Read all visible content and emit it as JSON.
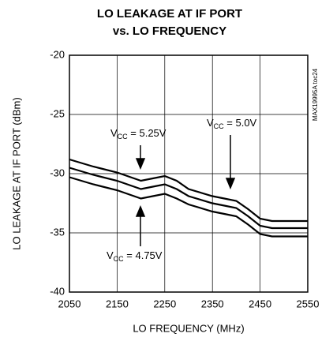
{
  "chart_data": {
    "type": "line",
    "title": [
      "LO LEAKAGE AT IF PORT",
      "vs. LO FREQUENCY"
    ],
    "xlabel": "LO FREQUENCY (MHz)",
    "ylabel": "LO LEAKAGE AT IF PORT (dBm)",
    "side_note": "MAX19995A toc24",
    "x": [
      2050,
      2100,
      2150,
      2200,
      2225,
      2250,
      2275,
      2300,
      2350,
      2375,
      2400,
      2425,
      2450,
      2475,
      2500,
      2550
    ],
    "series": [
      {
        "name": "VCC = 5.25V",
        "color": "#000000",
        "values": [
          -28.8,
          -29.4,
          -29.9,
          -30.6,
          -30.4,
          -30.2,
          -30.6,
          -31.3,
          -31.9,
          -32.1,
          -32.3,
          -33.0,
          -33.8,
          -34.0,
          -34.0,
          -34.0
        ]
      },
      {
        "name": "VCC = 5.0V",
        "color": "#000000",
        "values": [
          -29.5,
          -30.1,
          -30.6,
          -31.3,
          -31.1,
          -30.9,
          -31.3,
          -31.9,
          -32.5,
          -32.7,
          -32.9,
          -33.6,
          -34.4,
          -34.6,
          -34.6,
          -34.6
        ]
      },
      {
        "name": "VCC = 4.75V",
        "color": "#000000",
        "values": [
          -30.3,
          -30.9,
          -31.4,
          -32.1,
          -31.9,
          -31.7,
          -32.1,
          -32.6,
          -33.2,
          -33.4,
          -33.6,
          -34.3,
          -35.1,
          -35.3,
          -35.3,
          -35.3
        ]
      }
    ],
    "annotations": [
      {
        "main": "V",
        "sub": "CC",
        "rest": " = 5.25V"
      },
      {
        "main": "V",
        "sub": "CC",
        "rest": " = 5.0V"
      },
      {
        "main": "V",
        "sub": "CC",
        "rest": " = 4.75V"
      }
    ],
    "xlim": [
      2050,
      2550
    ],
    "ylim": [
      -40,
      -20
    ],
    "xticks": [
      2050,
      2150,
      2250,
      2350,
      2450,
      2550
    ],
    "yticks": [
      -40,
      -35,
      -30,
      -25,
      -20
    ],
    "grid": true
  }
}
